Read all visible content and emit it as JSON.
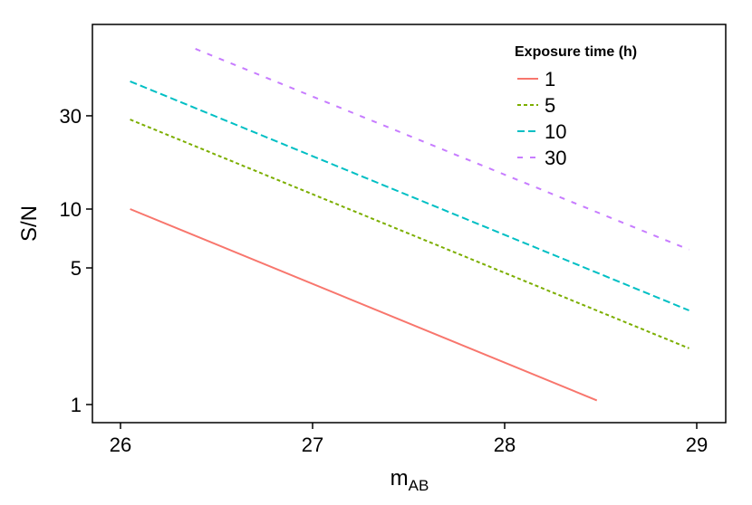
{
  "chart_data": {
    "type": "line",
    "title": "",
    "xlabel": "m",
    "xlabel_subscript": "AB",
    "ylabel": "S/N",
    "xlim": [
      25.85,
      29.15
    ],
    "ylim": [
      0.9,
      100
    ],
    "y_scale": "log",
    "x_ticks": [
      26,
      27,
      28,
      29
    ],
    "y_ticks": [
      1,
      5,
      10,
      30
    ],
    "grid": false,
    "legend": {
      "title": "Exposure time (h)",
      "position": "top-right"
    },
    "series": [
      {
        "name": "1",
        "color": "#F8766D",
        "dash": "solid",
        "x": [
          26.05,
          28.48
        ],
        "y": [
          10,
          1.05
        ]
      },
      {
        "name": "5",
        "color": "#7CAE00",
        "dash": "dotted",
        "x": [
          26.05,
          28.96
        ],
        "y": [
          28.7,
          1.94
        ]
      },
      {
        "name": "10",
        "color": "#00BFC4",
        "dash": "dashed",
        "x": [
          26.05,
          28.96
        ],
        "y": [
          45,
          3.03
        ]
      },
      {
        "name": "30",
        "color": "#C77CFF",
        "dash": "longdash",
        "x": [
          26.39,
          28.96
        ],
        "y": [
          66,
          6.2
        ]
      }
    ]
  }
}
